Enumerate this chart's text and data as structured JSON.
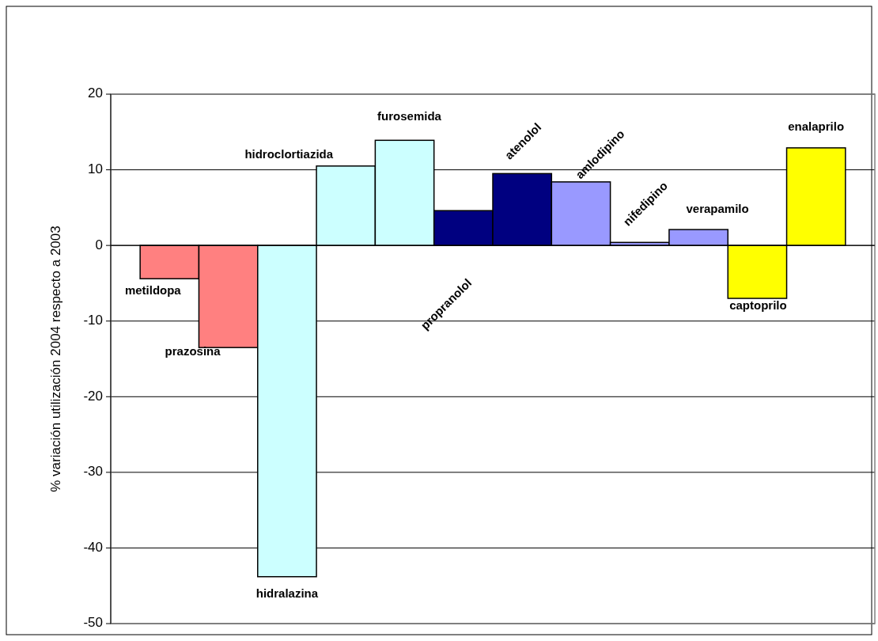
{
  "chart_data": {
    "type": "bar",
    "ylabel": "% variación utilización 2004 respecto a 2003",
    "categories": [
      null,
      null,
      null,
      null,
      null,
      null,
      null,
      null,
      null,
      null,
      null,
      null
    ],
    "values": [
      -4.4,
      -13.5,
      -43.8,
      10.5,
      13.9,
      4.6,
      9.5,
      8.4,
      0.4,
      2.1,
      -7.0,
      12.9
    ],
    "colors": [
      "#ff8080",
      "#ff8080",
      "#ccffff",
      "#ccffff",
      "#ccffff",
      "#000080",
      "#000080",
      "#9999ff",
      "#9999ff",
      "#9999ff",
      "#ffff00",
      "#ffff00"
    ],
    "annotations": [
      "metildopa",
      "prazosina",
      "hidralazina",
      "hidroclortiazida",
      "furosemida",
      "propranolol",
      "atenolol",
      "amlodipino",
      "nifedipino",
      "verapamilo",
      "captoprilo",
      "enalaprilo"
    ],
    "ylim": [
      -50,
      20
    ],
    "yticks": [
      -50,
      -40,
      -30,
      -20,
      -10,
      0,
      10,
      20
    ],
    "grid": "y",
    "tick_labels": "y"
  }
}
